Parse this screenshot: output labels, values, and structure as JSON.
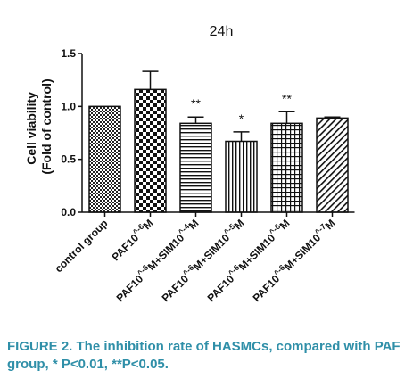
{
  "caption": "FIGURE 2. The inhibition rate of HASMCs, compared with PAF group, * P<0.01, **P<0.05.",
  "accent_color": "#2f8fa8",
  "chart_data": {
    "type": "bar",
    "title": "24h",
    "ylabel": "Cell viability (Fold of control)",
    "ylabel_lines": [
      "Cell viability",
      "(Fold of control)"
    ],
    "xlabel": "",
    "ylim": [
      0,
      1.5
    ],
    "yticks": [
      0.0,
      0.5,
      1.0,
      1.5
    ],
    "ytick_labels": [
      "0.0",
      "0.5",
      "1.0",
      "1.5"
    ],
    "grid": false,
    "categories": [
      {
        "base": "control group",
        "sup1": "",
        "mid": "",
        "sup2": "",
        "tail": ""
      },
      {
        "base": "PAF10",
        "sup1": "^-6",
        "mid": "M",
        "sup2": "",
        "tail": ""
      },
      {
        "base": "PAF10",
        "sup1": "^-6",
        "mid": "M+SIM10",
        "sup2": "^-4",
        "tail": "M"
      },
      {
        "base": "PAF10",
        "sup1": "^-6",
        "mid": "M+SIM10",
        "sup2": "^-5",
        "tail": "M"
      },
      {
        "base": "PAF10",
        "sup1": "^-6",
        "mid": "M+SIM10",
        "sup2": "^-6",
        "tail": "M"
      },
      {
        "base": "PAF10",
        "sup1": "^-6",
        "mid": "M+SIM10",
        "sup2": "^-7",
        "tail": "M"
      }
    ],
    "values": [
      1.0,
      1.16,
      0.84,
      0.67,
      0.84,
      0.89
    ],
    "errors": [
      0.0,
      0.17,
      0.06,
      0.09,
      0.11,
      0.01
    ],
    "significance": [
      "",
      "",
      "**",
      "*",
      "**",
      ""
    ],
    "patterns": [
      "checker",
      "bigchecker",
      "hlines",
      "vlines",
      "grid",
      "diagonal"
    ]
  }
}
